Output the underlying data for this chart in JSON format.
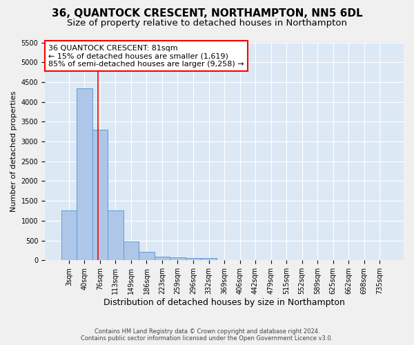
{
  "title1": "36, QUANTOCK CRESCENT, NORTHAMPTON, NN5 6DL",
  "title2": "Size of property relative to detached houses in Northampton",
  "xlabel": "Distribution of detached houses by size in Northampton",
  "ylabel": "Number of detached properties",
  "categories": [
    "3sqm",
    "40sqm",
    "76sqm",
    "113sqm",
    "149sqm",
    "186sqm",
    "223sqm",
    "259sqm",
    "296sqm",
    "332sqm",
    "369sqm",
    "406sqm",
    "442sqm",
    "479sqm",
    "515sqm",
    "552sqm",
    "589sqm",
    "625sqm",
    "662sqm",
    "698sqm",
    "735sqm"
  ],
  "values": [
    1250,
    4350,
    3300,
    1250,
    480,
    220,
    90,
    70,
    60,
    60,
    0,
    0,
    0,
    0,
    0,
    0,
    0,
    0,
    0,
    0,
    0
  ],
  "bar_color": "#aec6e8",
  "bar_edge_color": "#5b9bd5",
  "bg_color": "#dde8f5",
  "grid_color": "#ffffff",
  "red_line_x": 1.85,
  "annotation_title": "36 QUANTOCK CRESCENT: 81sqm",
  "annotation_line1": "← 15% of detached houses are smaller (1,619)",
  "annotation_line2": "85% of semi-detached houses are larger (9,258) →",
  "footer1": "Contains HM Land Registry data © Crown copyright and database right 2024.",
  "footer2": "Contains public sector information licensed under the Open Government Licence v3.0.",
  "ylim": [
    0,
    5500
  ],
  "title1_fontsize": 11,
  "title2_fontsize": 9.5,
  "xlabel_fontsize": 9,
  "ylabel_fontsize": 8,
  "tick_fontsize": 7,
  "annot_fontsize": 8
}
